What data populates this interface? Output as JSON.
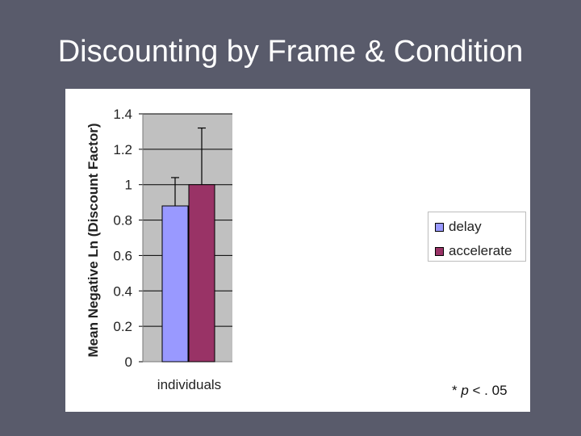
{
  "slide": {
    "title": "Discounting by Frame & Condition",
    "footnote_prefix": "* ",
    "footnote_var": "p",
    "footnote_suffix": " < . 05"
  },
  "chart_data": {
    "type": "bar",
    "title": "",
    "xlabel": "",
    "ylabel": "Mean Negative Ln (Discount Factor)",
    "categories": [
      "individuals"
    ],
    "series": [
      {
        "name": "delay",
        "values": [
          0.88
        ],
        "error_upper": [
          1.04
        ],
        "color": "#9999ff"
      },
      {
        "name": "accelerate",
        "values": [
          1.0
        ],
        "error_upper": [
          1.32
        ],
        "color": "#993366"
      }
    ],
    "ylim": [
      0,
      1.4
    ],
    "yticks": [
      0,
      0.2,
      0.4,
      0.6,
      0.8,
      1,
      1.2,
      1.4
    ],
    "ytick_labels": [
      "0",
      "0.2",
      "0.4",
      "0.6",
      "0.8",
      "1",
      "1.2",
      "1.4"
    ],
    "grid": true,
    "plot_background": "#c0c0c0",
    "legend": "right"
  }
}
